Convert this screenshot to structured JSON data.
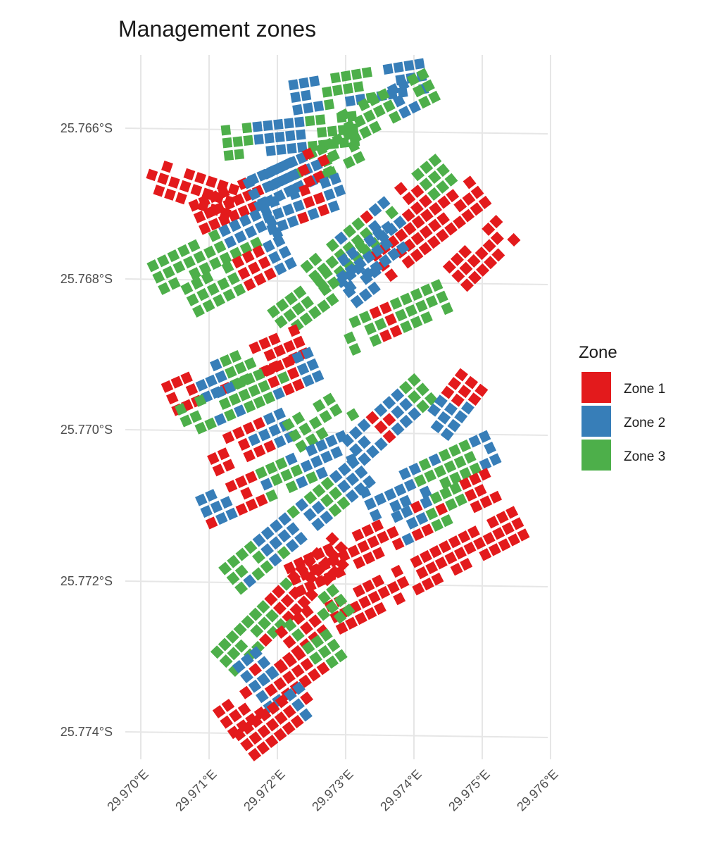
{
  "title": "Management zones",
  "legend": {
    "title": "Zone",
    "entries": [
      {
        "label": "Zone 1",
        "color": "#e31a1c"
      },
      {
        "label": "Zone 2",
        "color": "#377eb8"
      },
      {
        "label": "Zone 3",
        "color": "#4daf4a"
      }
    ]
  },
  "axes": {
    "x_ticks": [
      "29.970°E",
      "29.971°E",
      "29.972°E",
      "29.973°E",
      "29.974°E",
      "29.975°E",
      "29.976°E"
    ],
    "y_ticks": [
      "25.766°S",
      "25.768°S",
      "25.770°S",
      "25.772°S",
      "25.774°S"
    ]
  },
  "map": {
    "x_range": [
      29.97,
      29.976
    ],
    "y_range": [
      25.765,
      25.7743
    ],
    "grid": true,
    "rows": [
      {
        "lon0": 29.9712,
        "lat0": 25.7662,
        "lon1": 29.9732,
        "lat1": 25.766,
        "zones": [
          3,
          2,
          2,
          3,
          3
        ]
      },
      {
        "lon0": 29.9722,
        "lat0": 25.7656,
        "lon1": 29.9742,
        "lat1": 25.7653,
        "zones": [
          2,
          3,
          3,
          2,
          2
        ]
      },
      {
        "lon0": 29.973,
        "lat0": 25.766,
        "lon1": 29.9743,
        "lat1": 25.7654,
        "zones": [
          3,
          3,
          2,
          3
        ]
      },
      {
        "lon0": 29.9701,
        "lat0": 25.7666,
        "lon1": 29.9714,
        "lat1": 25.767,
        "zones": [
          1,
          1,
          1
        ]
      },
      {
        "lon0": 29.9708,
        "lat0": 25.7672,
        "lon1": 29.9728,
        "lat1": 25.7664,
        "zones": [
          1,
          1,
          2,
          2,
          3
        ]
      },
      {
        "lon0": 29.9716,
        "lat0": 25.7669,
        "lon1": 29.9732,
        "lat1": 25.7662,
        "zones": [
          2,
          2,
          1,
          3,
          3
        ]
      },
      {
        "lon0": 29.9702,
        "lat0": 25.768,
        "lon1": 29.972,
        "lat1": 25.7672,
        "zones": [
          3,
          3,
          3,
          2,
          2
        ]
      },
      {
        "lon0": 29.9707,
        "lat0": 25.7683,
        "lon1": 29.9722,
        "lat1": 25.7676,
        "zones": [
          3,
          3,
          1,
          2
        ]
      },
      {
        "lon0": 29.9718,
        "lat0": 25.7672,
        "lon1": 29.973,
        "lat1": 25.7668,
        "zones": [
          2,
          1,
          2
        ]
      },
      {
        "lon0": 29.9725,
        "lat0": 25.768,
        "lon1": 29.9745,
        "lat1": 25.7665,
        "zones": [
          3,
          3,
          2,
          1,
          3
        ]
      },
      {
        "lon0": 29.973,
        "lat0": 25.7682,
        "lon1": 29.975,
        "lat1": 25.7668,
        "zones": [
          2,
          1,
          1,
          1,
          1
        ]
      },
      {
        "lon0": 29.972,
        "lat0": 25.7686,
        "lon1": 29.9738,
        "lat1": 25.7674,
        "zones": [
          3,
          3,
          2,
          2
        ]
      },
      {
        "lon0": 29.9746,
        "lat0": 25.768,
        "lon1": 29.9754,
        "lat1": 25.7673,
        "zones": [
          1,
          1,
          1
        ]
      },
      {
        "lon0": 29.9704,
        "lat0": 25.7696,
        "lon1": 29.9724,
        "lat1": 25.7688,
        "zones": [
          1,
          2,
          3,
          1,
          1
        ]
      },
      {
        "lon0": 29.9706,
        "lat0": 25.7699,
        "lon1": 29.9726,
        "lat1": 25.7691,
        "zones": [
          3,
          2,
          3,
          1,
          2
        ]
      },
      {
        "lon0": 29.973,
        "lat0": 25.7688,
        "lon1": 29.9745,
        "lat1": 25.7682,
        "zones": [
          3,
          1,
          3,
          3
        ]
      },
      {
        "lon0": 29.971,
        "lat0": 25.7704,
        "lon1": 29.9722,
        "lat1": 25.7699,
        "zones": [
          1,
          1,
          2
        ]
      },
      {
        "lon0": 29.9722,
        "lat0": 25.7701,
        "lon1": 29.9731,
        "lat1": 25.7696,
        "zones": [
          3,
          3
        ]
      },
      {
        "lon0": 29.9731,
        "lat0": 25.7703,
        "lon1": 29.9742,
        "lat1": 25.7694,
        "zones": [
          2,
          1,
          2,
          3
        ]
      },
      {
        "lon0": 29.9743,
        "lat0": 25.77,
        "lon1": 29.9749,
        "lat1": 25.7693,
        "zones": [
          2,
          1
        ]
      },
      {
        "lon0": 29.9709,
        "lat0": 25.7711,
        "lon1": 29.9731,
        "lat1": 25.7702,
        "zones": [
          2,
          1,
          3,
          2,
          2
        ]
      },
      {
        "lon0": 29.9713,
        "lat0": 25.772,
        "lon1": 29.9733,
        "lat1": 25.7705,
        "zones": [
          3,
          2,
          2,
          3,
          2
        ]
      },
      {
        "lon0": 29.9733,
        "lat0": 25.771,
        "lon1": 29.9752,
        "lat1": 25.7702,
        "zones": [
          2,
          2,
          3,
          3,
          2
        ]
      },
      {
        "lon0": 29.9722,
        "lat0": 25.772,
        "lon1": 29.9752,
        "lat1": 25.7707,
        "zones": [
          1,
          1,
          1,
          2,
          3,
          1
        ]
      },
      {
        "lon0": 29.9712,
        "lat0": 25.7731,
        "lon1": 29.973,
        "lat1": 25.7715,
        "zones": [
          3,
          3,
          1,
          1,
          1
        ]
      },
      {
        "lon0": 29.9728,
        "lat0": 25.7725,
        "lon1": 29.9756,
        "lat1": 25.7712,
        "zones": [
          1,
          1,
          1,
          1,
          1,
          1
        ]
      },
      {
        "lon0": 29.9715,
        "lat0": 25.7733,
        "lon1": 29.973,
        "lat1": 25.7722,
        "zones": [
          2,
          1,
          1,
          3
        ]
      },
      {
        "lon0": 29.9712,
        "lat0": 25.7739,
        "lon1": 29.9729,
        "lat1": 25.7728,
        "zones": [
          1,
          2,
          1,
          3
        ]
      },
      {
        "lon0": 29.9715,
        "lat0": 25.7742,
        "lon1": 29.9725,
        "lat1": 25.7735,
        "zones": [
          1,
          1,
          2
        ]
      }
    ]
  }
}
